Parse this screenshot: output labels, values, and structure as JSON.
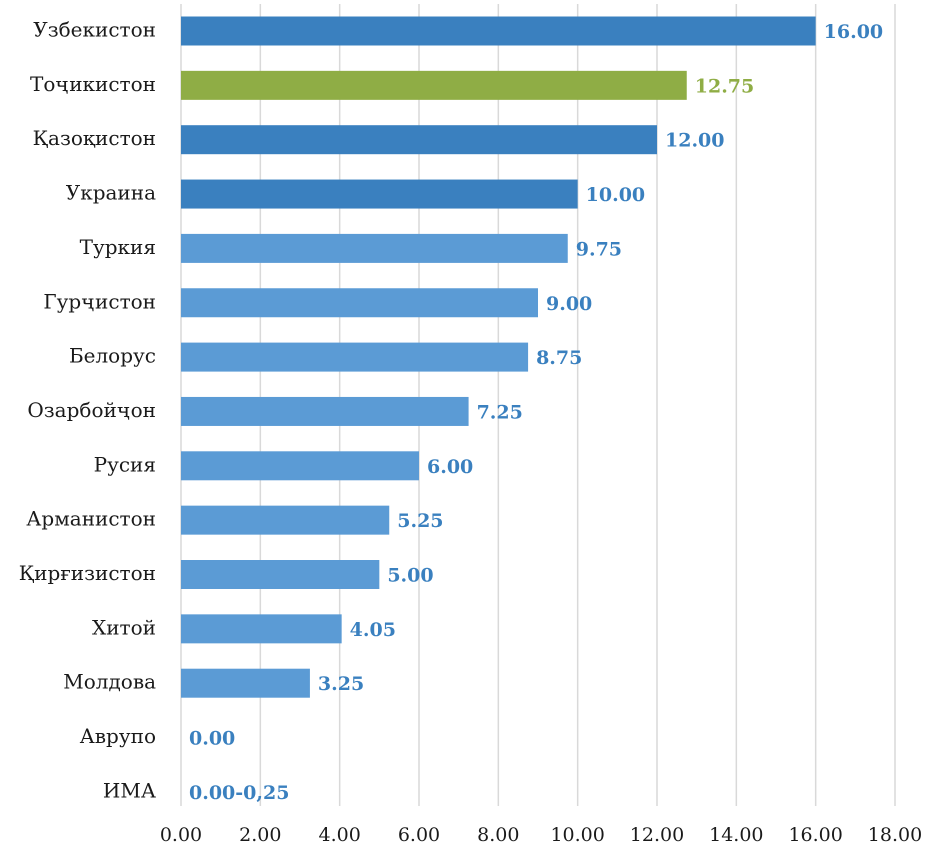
{
  "chart_data": {
    "type": "bar",
    "orientation": "horizontal",
    "title": "",
    "xlabel": "",
    "ylabel": "",
    "xlim": [
      0,
      18
    ],
    "x_ticks": [
      "0.00",
      "2.00",
      "4.00",
      "6.00",
      "8.00",
      "10.00",
      "12.00",
      "14.00",
      "16.00",
      "18.00"
    ],
    "grid": "vertical",
    "legend": "none",
    "colors": {
      "dark_blue": "#3a80bf",
      "light_blue": "#5b9bd5",
      "green": "#8fad45",
      "label_blue": "#3a80bf",
      "label_green": "#8fad45"
    },
    "categories": [
      "Узбекистон",
      "Тоҷикистон",
      "Қазоқистон",
      "Украина",
      "Туркия",
      "Гурҷистон",
      "Белорус",
      "Озарбойҷон",
      "Русия",
      "Арманистон",
      "Қирғизистон",
      "Хитой",
      "Молдова",
      "Аврупо",
      "ИМА"
    ],
    "values": [
      16.0,
      12.75,
      12.0,
      10.0,
      9.75,
      9.0,
      8.75,
      7.25,
      6.0,
      5.25,
      5.0,
      4.05,
      3.25,
      0.0,
      0.0
    ],
    "value_labels": [
      "16.00",
      "12.75",
      "12.00",
      "10.00",
      "9.75",
      "9.00",
      "8.75",
      "7.25",
      "6.00",
      "5.25",
      "5.00",
      "4.05",
      "3.25",
      "0.00",
      "0.00-0,25"
    ],
    "bar_colors": [
      "dark_blue",
      "green",
      "dark_blue",
      "dark_blue",
      "light_blue",
      "light_blue",
      "light_blue",
      "light_blue",
      "light_blue",
      "light_blue",
      "light_blue",
      "light_blue",
      "light_blue",
      "light_blue",
      "light_blue"
    ]
  }
}
